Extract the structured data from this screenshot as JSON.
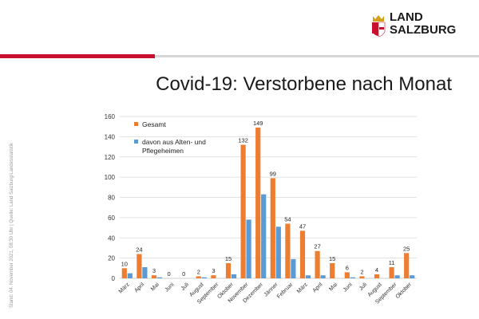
{
  "branding": {
    "logo_line1": "LAND",
    "logo_line2": "SALZBURG"
  },
  "title": "Covid-19: Verstorbene nach Monat",
  "side_note": "Stand: 04. November 2021, 08:30 Uhr | Quelle: Land Salzburg/Landesstatistik",
  "colors": {
    "gesamt": "#ed7d31",
    "altenheime": "#5b9bd5",
    "accent": "#c8102e"
  },
  "chart_data": {
    "type": "bar",
    "title": "",
    "xlabel": "",
    "ylabel": "",
    "ylim": [
      0,
      160
    ],
    "yticks": [
      0,
      20,
      40,
      60,
      80,
      100,
      120,
      140,
      160
    ],
    "grid": true,
    "legend_position": "top-left",
    "categories": [
      "März",
      "April",
      "Mai",
      "Juni",
      "Juli",
      "August",
      "September",
      "Oktober",
      "November",
      "Dezember",
      "Jänner",
      "Februar",
      "März",
      "April",
      "Mai",
      "Juni",
      "Juli",
      "August",
      "September",
      "Oktober"
    ],
    "series": [
      {
        "name": "Gesamt",
        "values": [
          10,
          24,
          3,
          0,
          0,
          2,
          3,
          15,
          132,
          149,
          99,
          54,
          47,
          27,
          15,
          6,
          2,
          4,
          11,
          25
        ]
      },
      {
        "name": "davon aus Alten- und Pflegeheimen",
        "legend_lines": [
          "davon aus Alten- und",
          "Pflegeheimen"
        ],
        "values": [
          5,
          11,
          1,
          0,
          0,
          1,
          0,
          4,
          58,
          83,
          51,
          19,
          3,
          3,
          0,
          1,
          0,
          0,
          3,
          3
        ]
      }
    ]
  }
}
